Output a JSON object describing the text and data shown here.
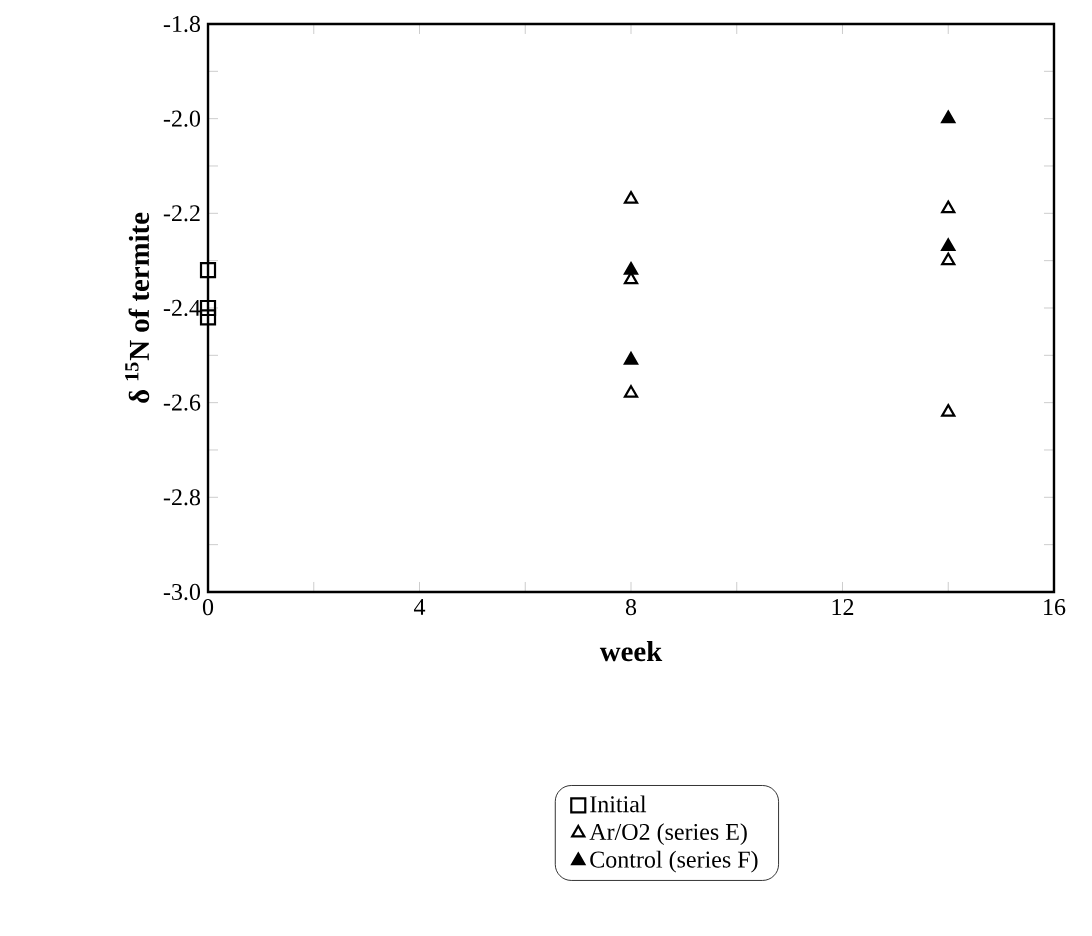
{
  "chart_data": {
    "type": "scatter",
    "xlabel": "week",
    "ylabel": "δ $^{15}$N of termite",
    "xlim": [
      0,
      16
    ],
    "ylim": [
      -3.0,
      -1.8
    ],
    "xticks": [
      0,
      {
        "value": 2,
        "label": null
      },
      4,
      {
        "value": 6,
        "label": null
      },
      8,
      {
        "value": 10,
        "label": null
      },
      12,
      {
        "value": 14,
        "label": null
      },
      16
    ],
    "yticks": [
      {
        "value": -3.0,
        "label": "-3.0"
      },
      {
        "value": -2.9,
        "label": null
      },
      -2.8,
      {
        "value": -2.7,
        "label": null
      },
      -2.6,
      {
        "value": -2.5,
        "label": null
      },
      -2.4,
      {
        "value": -2.3,
        "label": null
      },
      -2.2,
      {
        "value": -2.1,
        "label": null
      },
      {
        "value": -2.0,
        "label": "-2.0"
      },
      {
        "value": -1.9,
        "label": null
      },
      -1.8
    ],
    "legend": "bottom right",
    "grid": false,
    "series": [
      {
        "name": "Initial",
        "color": "#000000",
        "marker": "square",
        "x": [
          0,
          0,
          0
        ],
        "values": [
          -2.32,
          -2.4,
          -2.42
        ]
      },
      {
        "name": "Ar/O2 (series E)",
        "color": "#000000",
        "marker": "triangle",
        "x": [
          8,
          8,
          8,
          14,
          14,
          14
        ],
        "values": [
          -2.17,
          -2.34,
          -2.58,
          -2.19,
          -2.3,
          -2.62
        ]
      },
      {
        "name": "Control (series F)",
        "color": "#000000",
        "marker": "triangle*",
        "x": [
          8,
          8,
          14,
          14
        ],
        "values": [
          -2.32,
          -2.51,
          -2.0,
          -2.27
        ]
      }
    ]
  }
}
